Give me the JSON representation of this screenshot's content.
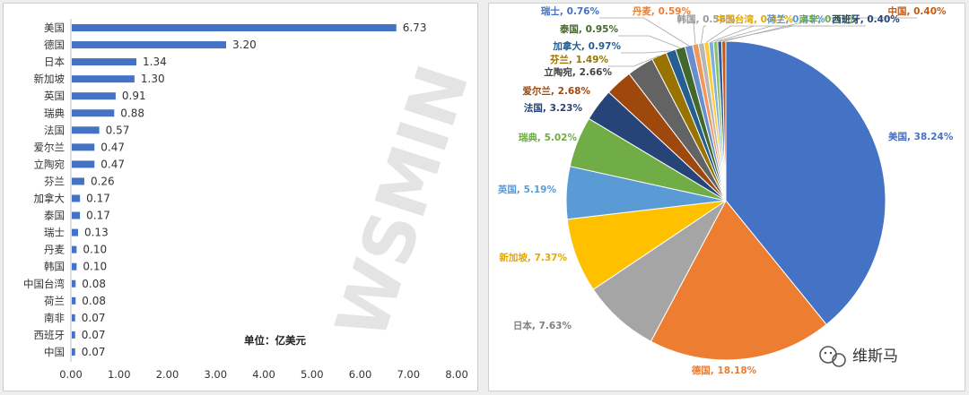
{
  "watermark": "WSMIN",
  "chart_data": [
    {
      "type": "bar",
      "orientation": "horizontal",
      "categories": [
        "美国",
        "德国",
        "日本",
        "新加坡",
        "英国",
        "瑞典",
        "法国",
        "爱尔兰",
        "立陶宛",
        "芬兰",
        "加拿大",
        "泰国",
        "瑞士",
        "丹麦",
        "韩国",
        "中国台湾",
        "荷兰",
        "南非",
        "西班牙",
        "中国"
      ],
      "values": [
        6.73,
        3.2,
        1.34,
        1.3,
        0.91,
        0.88,
        0.57,
        0.47,
        0.47,
        0.26,
        0.17,
        0.17,
        0.13,
        0.1,
        0.1,
        0.08,
        0.08,
        0.07,
        0.07,
        0.07
      ],
      "value_labels": [
        "6.73",
        "3.20",
        "1.34",
        "1.30",
        "0.91",
        "0.88",
        "0.57",
        "0.47",
        "0.47",
        "0.26",
        "0.17",
        "0.17",
        "0.13",
        "0.10",
        "0.10",
        "0.08",
        "0.08",
        "0.07",
        "0.07",
        "0.07"
      ],
      "xlim": [
        0,
        8
      ],
      "xticks": [
        "0.00",
        "1.00",
        "2.00",
        "3.00",
        "4.00",
        "5.00",
        "6.00",
        "7.00",
        "8.00"
      ],
      "grid": false,
      "bar_color": "#4472C4",
      "annotation": "单位：亿美元"
    },
    {
      "type": "pie",
      "start_angle_deg": 0,
      "direction": "clockwise",
      "slices": [
        {
          "label": "美国",
          "pct": 38.24,
          "text": "美国, 38.24%",
          "color": "#4472C4",
          "label_color": "#4472C4"
        },
        {
          "label": "德国",
          "pct": 18.18,
          "text": "德国, 18.18%",
          "color": "#ED7D31",
          "label_color": "#ED7D31"
        },
        {
          "label": "日本",
          "pct": 7.63,
          "text": "日本, 7.63%",
          "color": "#A5A5A5",
          "label_color": "#7f7f7f"
        },
        {
          "label": "新加坡",
          "pct": 7.37,
          "text": "新加坡, 7.37%",
          "color": "#FFC000",
          "label_color": "#E6A800"
        },
        {
          "label": "英国",
          "pct": 5.19,
          "text": "英国, 5.19%",
          "color": "#5B9BD5",
          "label_color": "#5B9BD5"
        },
        {
          "label": "瑞典",
          "pct": 5.02,
          "text": "瑞典, 5.02%",
          "color": "#70AD47",
          "label_color": "#70AD47"
        },
        {
          "label": "法国",
          "pct": 3.23,
          "text": "法国, 3.23%",
          "color": "#264478",
          "label_color": "#264478"
        },
        {
          "label": "爱尔兰",
          "pct": 2.68,
          "text": "爱尔兰, 2.68%",
          "color": "#9E480E",
          "label_color": "#9E480E"
        },
        {
          "label": "立陶宛",
          "pct": 2.66,
          "text": "立陶宛, 2.66%",
          "color": "#636363",
          "label_color": "#444444"
        },
        {
          "label": "芬兰",
          "pct": 1.49,
          "text": "芬兰, 1.49%",
          "color": "#997300",
          "label_color": "#997300"
        },
        {
          "label": "加拿大",
          "pct": 0.97,
          "text": "加拿大, 0.97%",
          "color": "#255E91",
          "label_color": "#255E91"
        },
        {
          "label": "泰国",
          "pct": 0.95,
          "text": "泰国, 0.95%",
          "color": "#43682B",
          "label_color": "#43682B"
        },
        {
          "label": "瑞士",
          "pct": 0.76,
          "text": "瑞士, 0.76%",
          "color": "#698ED0",
          "label_color": "#4472C4"
        },
        {
          "label": "丹麦",
          "pct": 0.59,
          "text": "丹麦, 0.59%",
          "color": "#F1975A",
          "label_color": "#ED7D31"
        },
        {
          "label": "韩国",
          "pct": 0.56,
          "text": "韩国, 0.56%",
          "color": "#B7B7B7",
          "label_color": "#999999"
        },
        {
          "label": "中国台湾",
          "pct": 0.47,
          "text": "中国台湾, 0.47%",
          "color": "#FFCD33",
          "label_color": "#E6A800"
        },
        {
          "label": "荷兰",
          "pct": 0.45,
          "text": "荷兰, 0.45%",
          "color": "#7CAFDD",
          "label_color": "#5B9BD5"
        },
        {
          "label": "南非",
          "pct": 0.41,
          "text": "南非, 0.41%",
          "color": "#8CC168",
          "label_color": "#70AD47"
        },
        {
          "label": "西班牙",
          "pct": 0.4,
          "text": "西班牙, 0.40%",
          "color": "#335AA1",
          "label_color": "#264478"
        },
        {
          "label": "中国",
          "pct": 0.4,
          "text": "中国, 0.40%",
          "color": "#C55A11",
          "label_color": "#C55A11"
        }
      ]
    }
  ],
  "footer": {
    "brand": "维斯马",
    "icon": "wechat-icon"
  }
}
